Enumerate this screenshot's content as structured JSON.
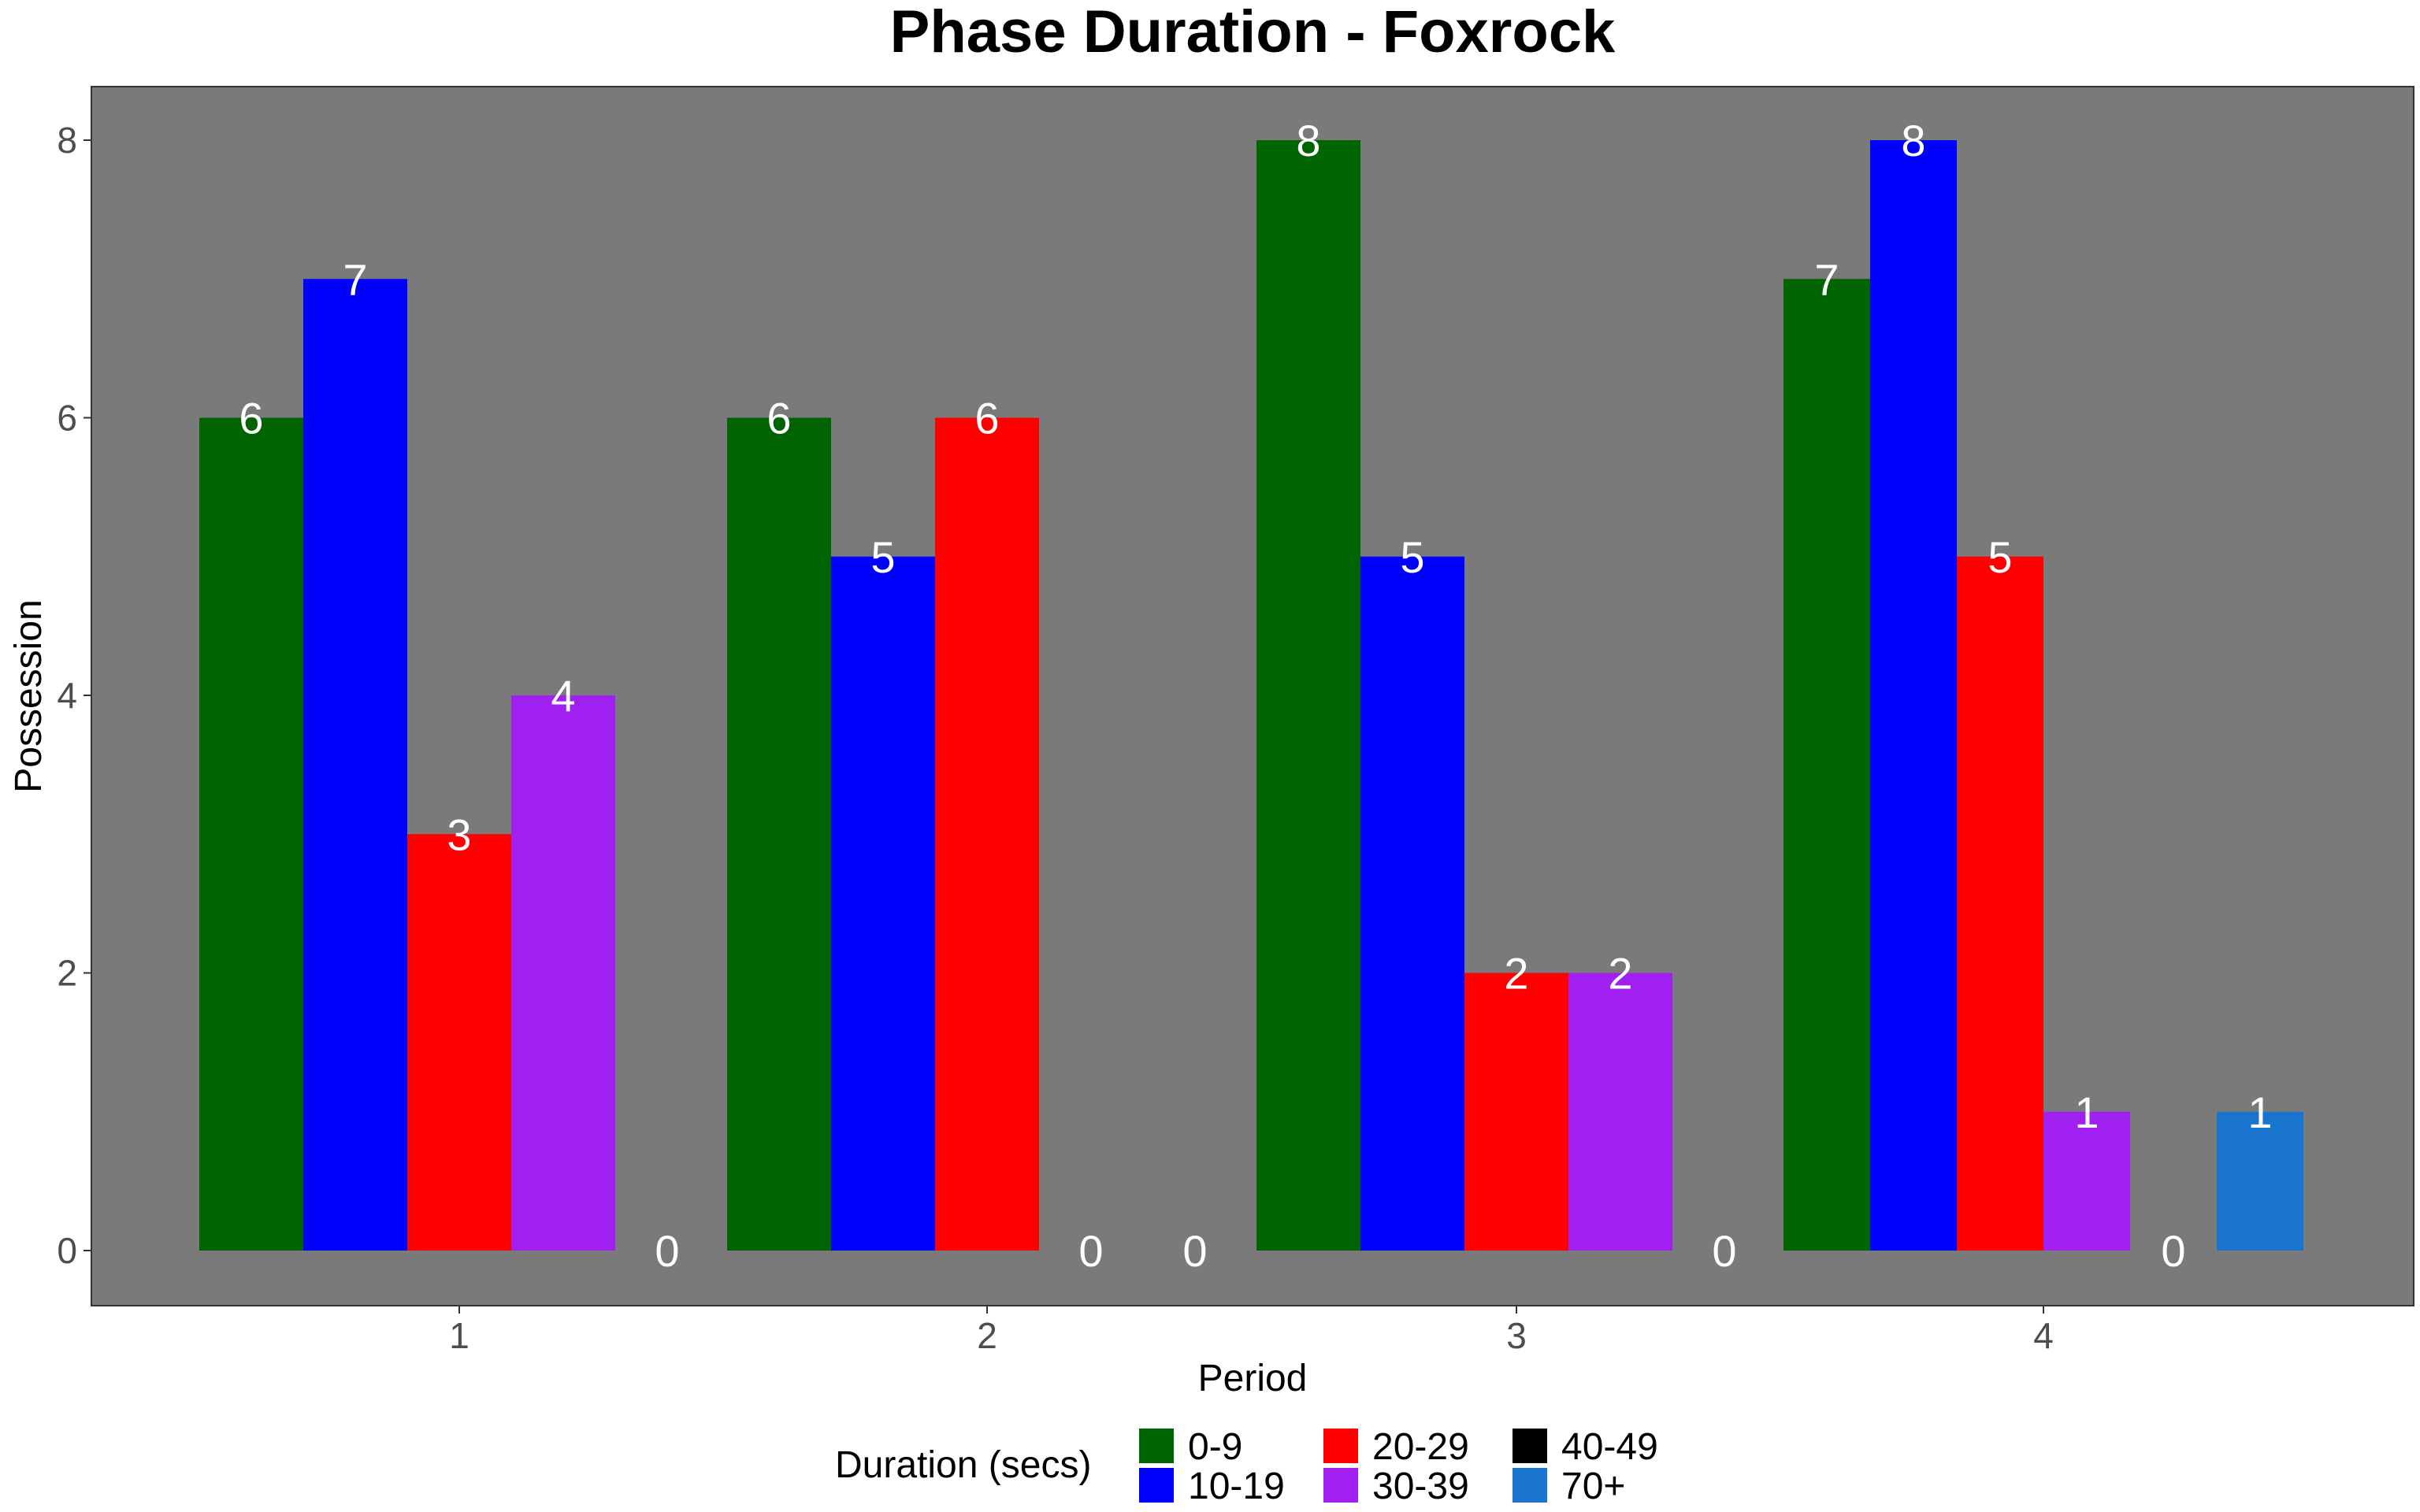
{
  "chart_data": {
    "type": "bar",
    "title": "Phase Duration - Foxrock",
    "xlabel": "Period",
    "ylabel": "Possession",
    "categories": [
      "1",
      "2",
      "3",
      "4"
    ],
    "yticks": [
      "0",
      "2",
      "4",
      "6",
      "8"
    ],
    "ylim": [
      0,
      8
    ],
    "grid": false,
    "panel_color": "#7a7a7a",
    "legend": {
      "title": "Duration (secs)",
      "placement": "bottom"
    },
    "series": [
      {
        "name": "0-9",
        "color": "#006400",
        "values": [
          6,
          6,
          8,
          7
        ]
      },
      {
        "name": "10-19",
        "color": "#0000ff",
        "values": [
          7,
          5,
          5,
          8
        ]
      },
      {
        "name": "20-29",
        "color": "#ff0000",
        "values": [
          3,
          6,
          2,
          5
        ]
      },
      {
        "name": "30-39",
        "color": "#a020f0",
        "values": [
          4,
          null,
          2,
          1
        ]
      },
      {
        "name": "40-49",
        "color": "#000000",
        "values": [
          null,
          null,
          null,
          0
        ]
      },
      {
        "name": "70+",
        "color": "#1874cd",
        "values": [
          0,
          0,
          0,
          1
        ]
      }
    ],
    "bars_by_period": [
      [
        "0-9",
        "10-19",
        "20-29",
        "30-39",
        "70+"
      ],
      [
        "0-9",
        "10-19",
        "20-29",
        "30-39",
        "70+"
      ],
      [
        "0-9",
        "10-19",
        "20-29",
        "30-39",
        "70+"
      ],
      [
        "0-9",
        "10-19",
        "20-29",
        "30-39",
        "40-49",
        "70+"
      ]
    ],
    "data_labels": [
      [
        "6",
        "7",
        "3",
        "4",
        "0"
      ],
      [
        "6",
        "5",
        "6",
        "0",
        "0"
      ],
      [
        "8",
        "5",
        "2",
        "2",
        "0"
      ],
      [
        "7",
        "8",
        "5",
        "1",
        "0",
        "1"
      ]
    ]
  }
}
